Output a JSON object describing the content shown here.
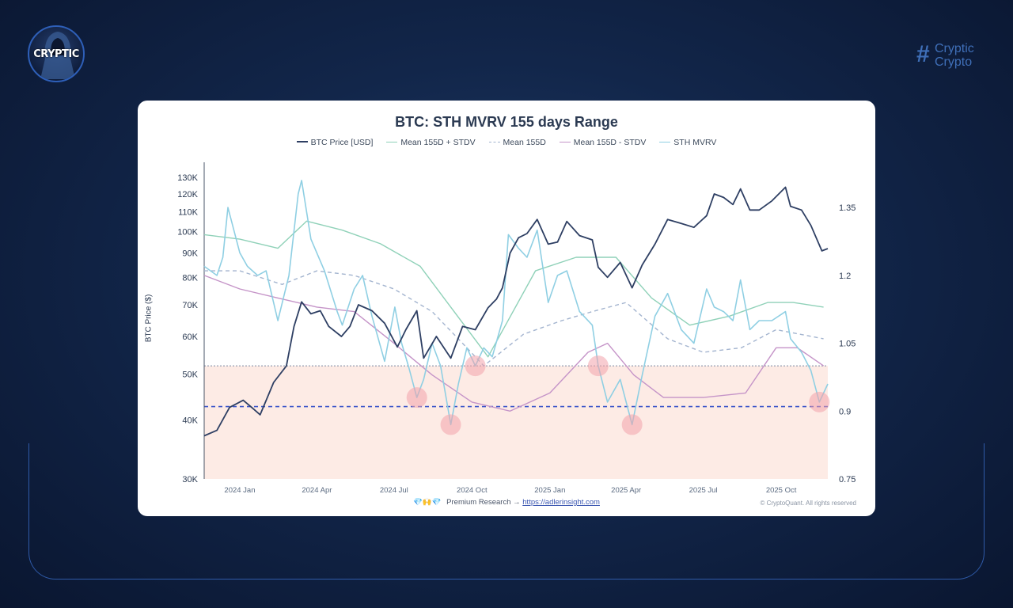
{
  "brand": {
    "logo_text": "CRYPTIC",
    "name_line1": "Cryptic",
    "name_line2": "Crypto",
    "hash_symbol": "#"
  },
  "colors": {
    "background": "#12264a",
    "card": "#ffffff",
    "btc_price": "#2e3f63",
    "mean_plus": "#8fd1b8",
    "mean": "#a3b4cf",
    "mean_minus": "#c594c8",
    "sth_mvrv": "#8fcfe3",
    "zone": "#fde8e1",
    "band_line": "#3b55c9",
    "marker": "#f2a3ab"
  },
  "footer": {
    "gems": "💎🙌💎",
    "text": "Premium Research →",
    "link": "https://adlerinsight.com",
    "copyright": "© CryptoQuant. All rights reserved"
  },
  "chart_data": {
    "type": "line",
    "title": "BTC: STH MVRV 155 days Range",
    "ylabel": "BTC Price ($)",
    "y_scale": "log",
    "ylim": [
      30000,
      140000
    ],
    "y2lim": [
      0.75,
      1.45
    ],
    "y_ticks": [
      "30K",
      "40K",
      "50K",
      "60K",
      "70K",
      "80K",
      "90K",
      "100K",
      "110K",
      "120K",
      "130K"
    ],
    "y_tick_values": [
      30000,
      40000,
      50000,
      60000,
      70000,
      80000,
      90000,
      100000,
      110000,
      120000,
      130000
    ],
    "y2_ticks": [
      "0.75",
      "0.9",
      "1.05",
      "1.2",
      "1.35"
    ],
    "y2_tick_values": [
      0.75,
      0.9,
      1.05,
      1.2,
      1.35
    ],
    "x_ticks": [
      "2024 Jan",
      "2024 Apr",
      "2024 Jul",
      "2024 Oct",
      "2025 Jan",
      "2025 Apr",
      "2025 Jul",
      "2025 Oct"
    ],
    "x_range": [
      "2023-11-20",
      "2025-11-25"
    ],
    "x_tick_dates": [
      "2024-01-01",
      "2024-04-01",
      "2024-07-01",
      "2024-10-01",
      "2025-01-01",
      "2025-04-01",
      "2025-07-01",
      "2025-10-01"
    ],
    "legend": [
      "BTC Price [USD]",
      "Mean 155D + STDV",
      "Mean 155D",
      "Mean 155D - STDV",
      "STH MVRV"
    ],
    "legend_position": "top-center",
    "reference_lines": {
      "upper_dotted": 1.0,
      "lower_dashed": 0.91
    },
    "shaded_zone_mvrv": [
      0.75,
      1.0
    ],
    "series": [
      {
        "name": "BTC Price [USD]",
        "axis": "left",
        "x": [
          "2023-11-20",
          "2023-12-05",
          "2023-12-20",
          "2024-01-05",
          "2024-01-15",
          "2024-01-25",
          "2024-02-10",
          "2024-02-25",
          "2024-03-05",
          "2024-03-14",
          "2024-03-25",
          "2024-04-05",
          "2024-04-15",
          "2024-04-30",
          "2024-05-10",
          "2024-05-20",
          "2024-06-05",
          "2024-06-20",
          "2024-07-05",
          "2024-07-15",
          "2024-07-28",
          "2024-08-05",
          "2024-08-20",
          "2024-09-06",
          "2024-09-20",
          "2024-10-05",
          "2024-10-20",
          "2024-10-30",
          "2024-11-06",
          "2024-11-15",
          "2024-11-25",
          "2024-12-05",
          "2024-12-17",
          "2024-12-30",
          "2025-01-10",
          "2025-01-21",
          "2025-02-05",
          "2025-02-20",
          "2025-02-27",
          "2025-03-10",
          "2025-03-25",
          "2025-04-08",
          "2025-04-20",
          "2025-05-05",
          "2025-05-20",
          "2025-06-05",
          "2025-06-20",
          "2025-07-05",
          "2025-07-14",
          "2025-07-25",
          "2025-08-05",
          "2025-08-14",
          "2025-08-25",
          "2025-09-05",
          "2025-09-20",
          "2025-10-06",
          "2025-10-12",
          "2025-10-25",
          "2025-11-05",
          "2025-11-18",
          "2025-11-25"
        ],
        "values": [
          37000,
          38000,
          42500,
          44000,
          42500,
          41000,
          48000,
          52000,
          63000,
          71000,
          67000,
          68000,
          63000,
          60000,
          63000,
          70000,
          68000,
          64000,
          57000,
          62000,
          68000,
          54000,
          60000,
          54000,
          63000,
          62000,
          69000,
          72000,
          76000,
          90000,
          97000,
          99000,
          106000,
          94000,
          95000,
          105000,
          98000,
          96000,
          84000,
          80000,
          86000,
          76000,
          85000,
          94000,
          106000,
          104000,
          102000,
          108000,
          120000,
          118000,
          114000,
          123000,
          111000,
          111000,
          116000,
          124000,
          113000,
          111000,
          103000,
          91000,
          92000
        ]
      },
      {
        "name": "Mean 155D + STDV",
        "axis": "right",
        "x": [
          "2023-11-20",
          "2024-01-01",
          "2024-02-15",
          "2024-03-20",
          "2024-05-01",
          "2024-06-15",
          "2024-08-01",
          "2024-09-10",
          "2024-10-20",
          "2024-12-15",
          "2025-02-01",
          "2025-03-20",
          "2025-05-01",
          "2025-06-15",
          "2025-08-01",
          "2025-09-15",
          "2025-10-15",
          "2025-11-20"
        ],
        "values": [
          1.29,
          1.28,
          1.26,
          1.32,
          1.3,
          1.27,
          1.22,
          1.12,
          1.02,
          1.21,
          1.24,
          1.24,
          1.15,
          1.09,
          1.11,
          1.14,
          1.14,
          1.13
        ]
      },
      {
        "name": "Mean 155D",
        "axis": "right",
        "x": [
          "2023-11-20",
          "2024-01-01",
          "2024-02-20",
          "2024-04-01",
          "2024-05-15",
          "2024-07-01",
          "2024-08-15",
          "2024-09-25",
          "2024-10-15",
          "2024-12-01",
          "2025-01-15",
          "2025-02-20",
          "2025-04-01",
          "2025-05-20",
          "2025-07-01",
          "2025-08-15",
          "2025-09-25",
          "2025-11-20"
        ],
        "values": [
          1.21,
          1.21,
          1.18,
          1.21,
          1.2,
          1.17,
          1.12,
          1.04,
          1.0,
          1.07,
          1.1,
          1.12,
          1.14,
          1.06,
          1.03,
          1.04,
          1.08,
          1.06
        ]
      },
      {
        "name": "Mean 155D - STDV",
        "axis": "right",
        "x": [
          "2023-11-20",
          "2024-01-01",
          "2024-02-15",
          "2024-04-01",
          "2024-05-15",
          "2024-07-01",
          "2024-08-15",
          "2024-10-01",
          "2024-11-15",
          "2025-01-01",
          "2025-02-15",
          "2025-03-10",
          "2025-04-10",
          "2025-05-15",
          "2025-07-01",
          "2025-08-20",
          "2025-09-25",
          "2025-10-20",
          "2025-11-20"
        ],
        "values": [
          1.2,
          1.17,
          1.15,
          1.13,
          1.12,
          1.05,
          0.98,
          0.92,
          0.9,
          0.94,
          1.03,
          1.05,
          0.98,
          0.93,
          0.93,
          0.94,
          1.04,
          1.04,
          1.0
        ]
      },
      {
        "name": "STH MVRV",
        "axis": "right",
        "x": [
          "2023-11-20",
          "2023-12-05",
          "2023-12-12",
          "2023-12-18",
          "2024-01-01",
          "2024-01-10",
          "2024-01-22",
          "2024-02-01",
          "2024-02-15",
          "2024-02-28",
          "2024-03-10",
          "2024-03-14",
          "2024-03-25",
          "2024-04-10",
          "2024-04-25",
          "2024-05-01",
          "2024-05-15",
          "2024-05-25",
          "2024-06-05",
          "2024-06-20",
          "2024-07-02",
          "2024-07-10",
          "2024-07-18",
          "2024-07-28",
          "2024-08-05",
          "2024-08-15",
          "2024-08-25",
          "2024-09-06",
          "2024-09-15",
          "2024-09-25",
          "2024-10-05",
          "2024-10-15",
          "2024-10-25",
          "2024-11-06",
          "2024-11-13",
          "2024-11-25",
          "2024-12-05",
          "2024-12-17",
          "2024-12-30",
          "2025-01-10",
          "2025-01-21",
          "2025-02-05",
          "2025-02-20",
          "2025-02-27",
          "2025-03-10",
          "2025-03-25",
          "2025-04-08",
          "2025-04-20",
          "2025-05-05",
          "2025-05-20",
          "2025-06-05",
          "2025-06-20",
          "2025-07-05",
          "2025-07-14",
          "2025-07-25",
          "2025-08-05",
          "2025-08-14",
          "2025-08-25",
          "2025-09-05",
          "2025-09-20",
          "2025-10-06",
          "2025-10-12",
          "2025-10-25",
          "2025-11-05",
          "2025-11-15",
          "2025-11-25"
        ],
        "values": [
          1.22,
          1.2,
          1.24,
          1.35,
          1.25,
          1.22,
          1.2,
          1.21,
          1.1,
          1.2,
          1.38,
          1.41,
          1.28,
          1.21,
          1.12,
          1.09,
          1.17,
          1.2,
          1.11,
          1.01,
          1.13,
          1.05,
          1.0,
          0.93,
          0.97,
          1.05,
          1.0,
          0.87,
          0.96,
          1.04,
          1.0,
          1.04,
          1.02,
          1.1,
          1.29,
          1.26,
          1.24,
          1.3,
          1.14,
          1.2,
          1.21,
          1.12,
          1.09,
          1.0,
          0.92,
          0.97,
          0.87,
          0.98,
          1.11,
          1.16,
          1.08,
          1.05,
          1.17,
          1.13,
          1.12,
          1.1,
          1.19,
          1.08,
          1.1,
          1.1,
          1.12,
          1.06,
          1.03,
          0.99,
          0.92,
          0.96
        ]
      }
    ],
    "highlight_dates": [
      "2024-07-28",
      "2024-09-06",
      "2024-10-05",
      "2025-02-27",
      "2025-04-08",
      "2025-11-15"
    ]
  }
}
